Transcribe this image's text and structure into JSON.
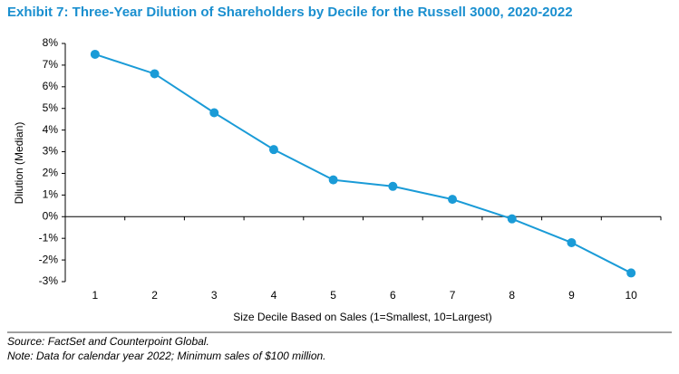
{
  "chart_data": {
    "type": "line",
    "title": "Exhibit 7: Three-Year Dilution of Shareholders by Decile for the Russell 3000, 2020-2022",
    "x_label": "Size Decile Based on Sales (1=Smallest, 10=Largest)",
    "y_label": "Dilution (Median)",
    "categories": [
      1,
      2,
      3,
      4,
      5,
      6,
      7,
      8,
      9,
      10
    ],
    "values": [
      7.5,
      6.6,
      4.8,
      3.1,
      1.7,
      1.4,
      0.8,
      -0.1,
      -1.2,
      -2.6
    ],
    "color": "#1a9bd7",
    "ylim": [
      -3,
      8
    ],
    "yticks": [
      {
        "value": 8,
        "label": "8%"
      },
      {
        "value": 7,
        "label": "7%"
      },
      {
        "value": 6,
        "label": "6%"
      },
      {
        "value": 5,
        "label": "5%"
      },
      {
        "value": 4,
        "label": "4%"
      },
      {
        "value": 3,
        "label": "3%"
      },
      {
        "value": 2,
        "label": "2%"
      },
      {
        "value": 1,
        "label": "1%"
      },
      {
        "value": 0,
        "label": "0%"
      },
      {
        "value": -1,
        "label": "-1%"
      },
      {
        "value": -2,
        "label": "-2%"
      },
      {
        "value": -3,
        "label": "-3%"
      }
    ],
    "grid": false,
    "source": "Source: FactSet and Counterpoint Global.",
    "note": "Note: Data for calendar year 2022; Minimum sales of $100 million."
  }
}
